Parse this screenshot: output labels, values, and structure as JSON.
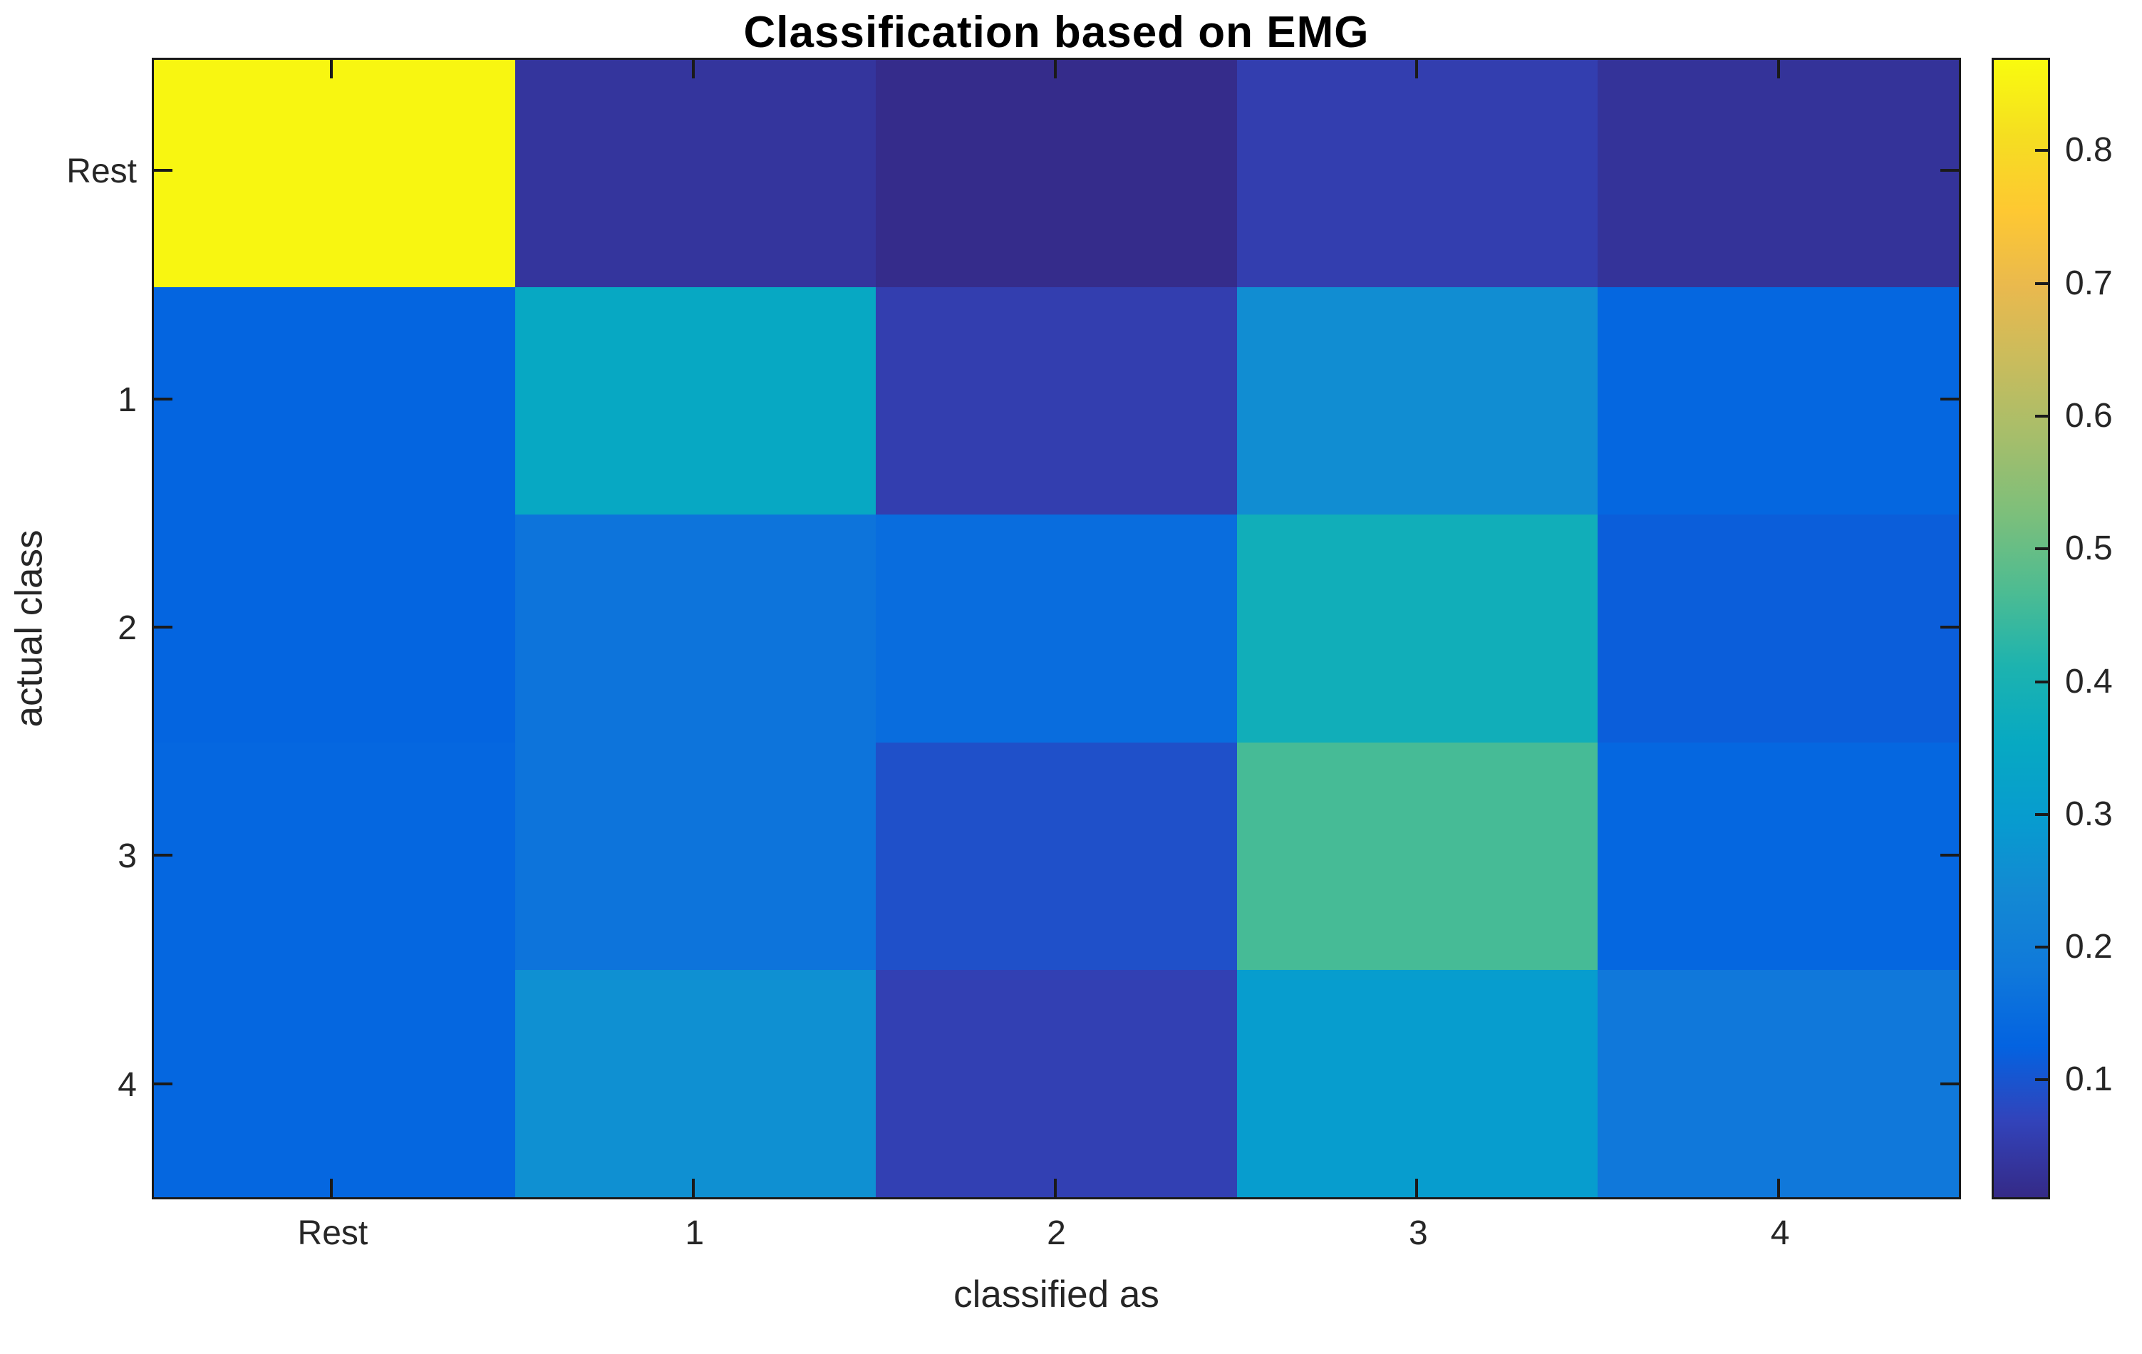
{
  "chart_data": {
    "type": "heatmap",
    "title": "Classification based on EMG",
    "xlabel": "classified as",
    "ylabel": "actual class",
    "x_categories": [
      "Rest",
      "1",
      "2",
      "3",
      "4"
    ],
    "y_categories": [
      "Rest",
      "1",
      "2",
      "3",
      "4"
    ],
    "values": [
      [
        0.86,
        0.035,
        0.015,
        0.055,
        0.03
      ],
      [
        0.13,
        0.35,
        0.055,
        0.25,
        0.135
      ],
      [
        0.13,
        0.17,
        0.15,
        0.38,
        0.115
      ],
      [
        0.135,
        0.17,
        0.09,
        0.46,
        0.135
      ],
      [
        0.135,
        0.26,
        0.06,
        0.3,
        0.18
      ]
    ],
    "clim": [
      0.01,
      0.87
    ],
    "colormap": "parula",
    "colorbar_tick_values": [
      0.8,
      0.7,
      0.6,
      0.5,
      0.4,
      0.3,
      0.2,
      0.1
    ],
    "colorbar_tick_labels": [
      "0.8",
      "0.7",
      "0.6",
      "0.5",
      "0.4",
      "0.3",
      "0.2",
      "0.1"
    ],
    "colorbar_position": "right",
    "grid": false
  },
  "style": {
    "background": "#ffffff",
    "title_color": "#000000",
    "label_color": "#262626",
    "axis_color": "#1a1a1a",
    "parula_stops": [
      "#352A87",
      "#3243BA",
      "#0363E1",
      "#1079DA",
      "#1389D3",
      "#079CCF",
      "#07A9C2",
      "#1DB3AF",
      "#4DBC92",
      "#7CBF7B",
      "#A5BE6B",
      "#C8BC5D",
      "#E9B94E",
      "#FEC832",
      "#F5DE21",
      "#F9FB0E"
    ]
  }
}
